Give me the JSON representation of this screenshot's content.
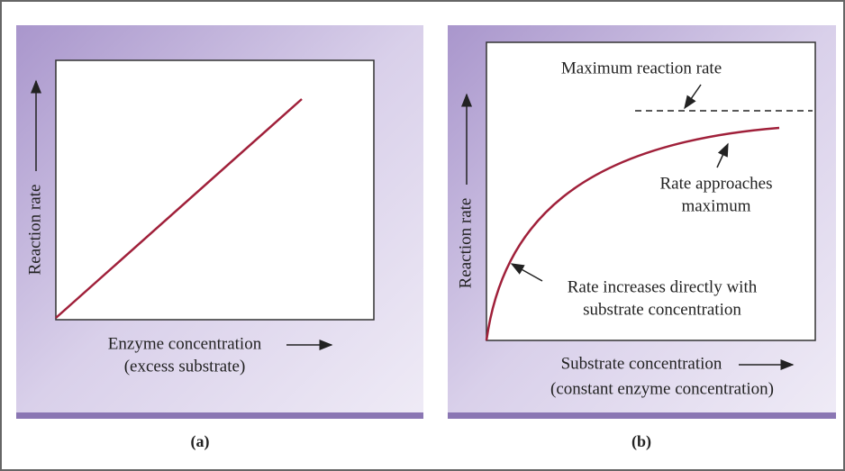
{
  "panels": [
    {
      "y_label": "Reaction rate",
      "x_label": "Enzyme concentration",
      "x_sublabel": "(excess substrate)",
      "caption": "(a)"
    },
    {
      "y_label": "Reaction rate",
      "x_label": "Substrate concentration",
      "x_sublabel": "(constant enzyme concentration)",
      "caption": "(b)",
      "annotations": [
        "Maximum reaction rate",
        "Rate approaches",
        "maximum",
        "Rate increases directly with",
        "substrate concentration"
      ]
    }
  ]
}
